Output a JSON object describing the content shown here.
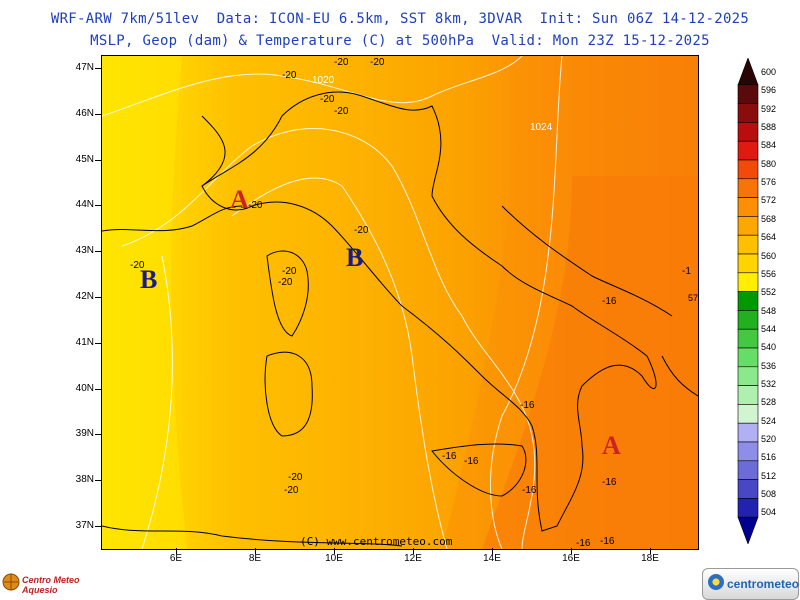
{
  "header": {
    "line1": "WRF-ARW 7km/51lev  Data: ICON-EU 6.5km, SST 8km, 3DVAR  Init: Sun 06Z 14-12-2025",
    "line2": "MSLP, Geop (dam) & Temperature (C) at 500hPa  Valid: Mon 23Z 15-12-2025"
  },
  "map": {
    "lat_labels": [
      "47N",
      "46N",
      "45N",
      "44N",
      "43N",
      "42N",
      "41N",
      "40N",
      "39N",
      "38N",
      "37N"
    ],
    "lon_labels": [
      "6E",
      "8E",
      "10E",
      "12E",
      "14E",
      "16E",
      "18E"
    ],
    "pressure_labels": [
      "1020",
      "1024"
    ],
    "temp_labels": [
      "-20",
      "-20",
      "-20",
      "-20",
      "-20",
      "-20",
      "-20",
      "-20",
      "-20",
      "-20",
      "-20",
      "-20",
      "-16",
      "-16",
      "-16",
      "-16",
      "-16",
      "-16",
      "-16",
      "-1"
    ],
    "centres": {
      "low1": "B",
      "low2": "B",
      "high1": "A",
      "high2": "A"
    },
    "copyright": "(C) www.centrometeo.com",
    "stray_label": "57",
    "colors": {
      "land_boundary": "#000000",
      "isobar": "#ffffff",
      "low_center": "#1a1a8c",
      "high_center": "#cc2222"
    }
  },
  "colorbar": {
    "levels": [
      "600",
      "596",
      "592",
      "588",
      "584",
      "580",
      "576",
      "572",
      "568",
      "564",
      "560",
      "556",
      "552",
      "548",
      "544",
      "540",
      "536",
      "532",
      "528",
      "524",
      "520",
      "516",
      "512",
      "508",
      "504"
    ],
    "colors": [
      "#2a0505",
      "#5a0a0a",
      "#8a0c0c",
      "#b80e0e",
      "#e01a10",
      "#f24a08",
      "#f87308",
      "#fb8f06",
      "#fda802",
      "#ffc000",
      "#ffd400",
      "#ffee00",
      "#009a00",
      "#22b020",
      "#44c840",
      "#66dd66",
      "#8ce88c",
      "#aef0ae",
      "#d0f5d0",
      "#b0b0f2",
      "#8e8ee8",
      "#6c6cd8",
      "#4848c6",
      "#2222b0",
      "#000090"
    ]
  },
  "logos": {
    "left": "Centro Meteo Aquesio",
    "right": "centrometeo"
  }
}
